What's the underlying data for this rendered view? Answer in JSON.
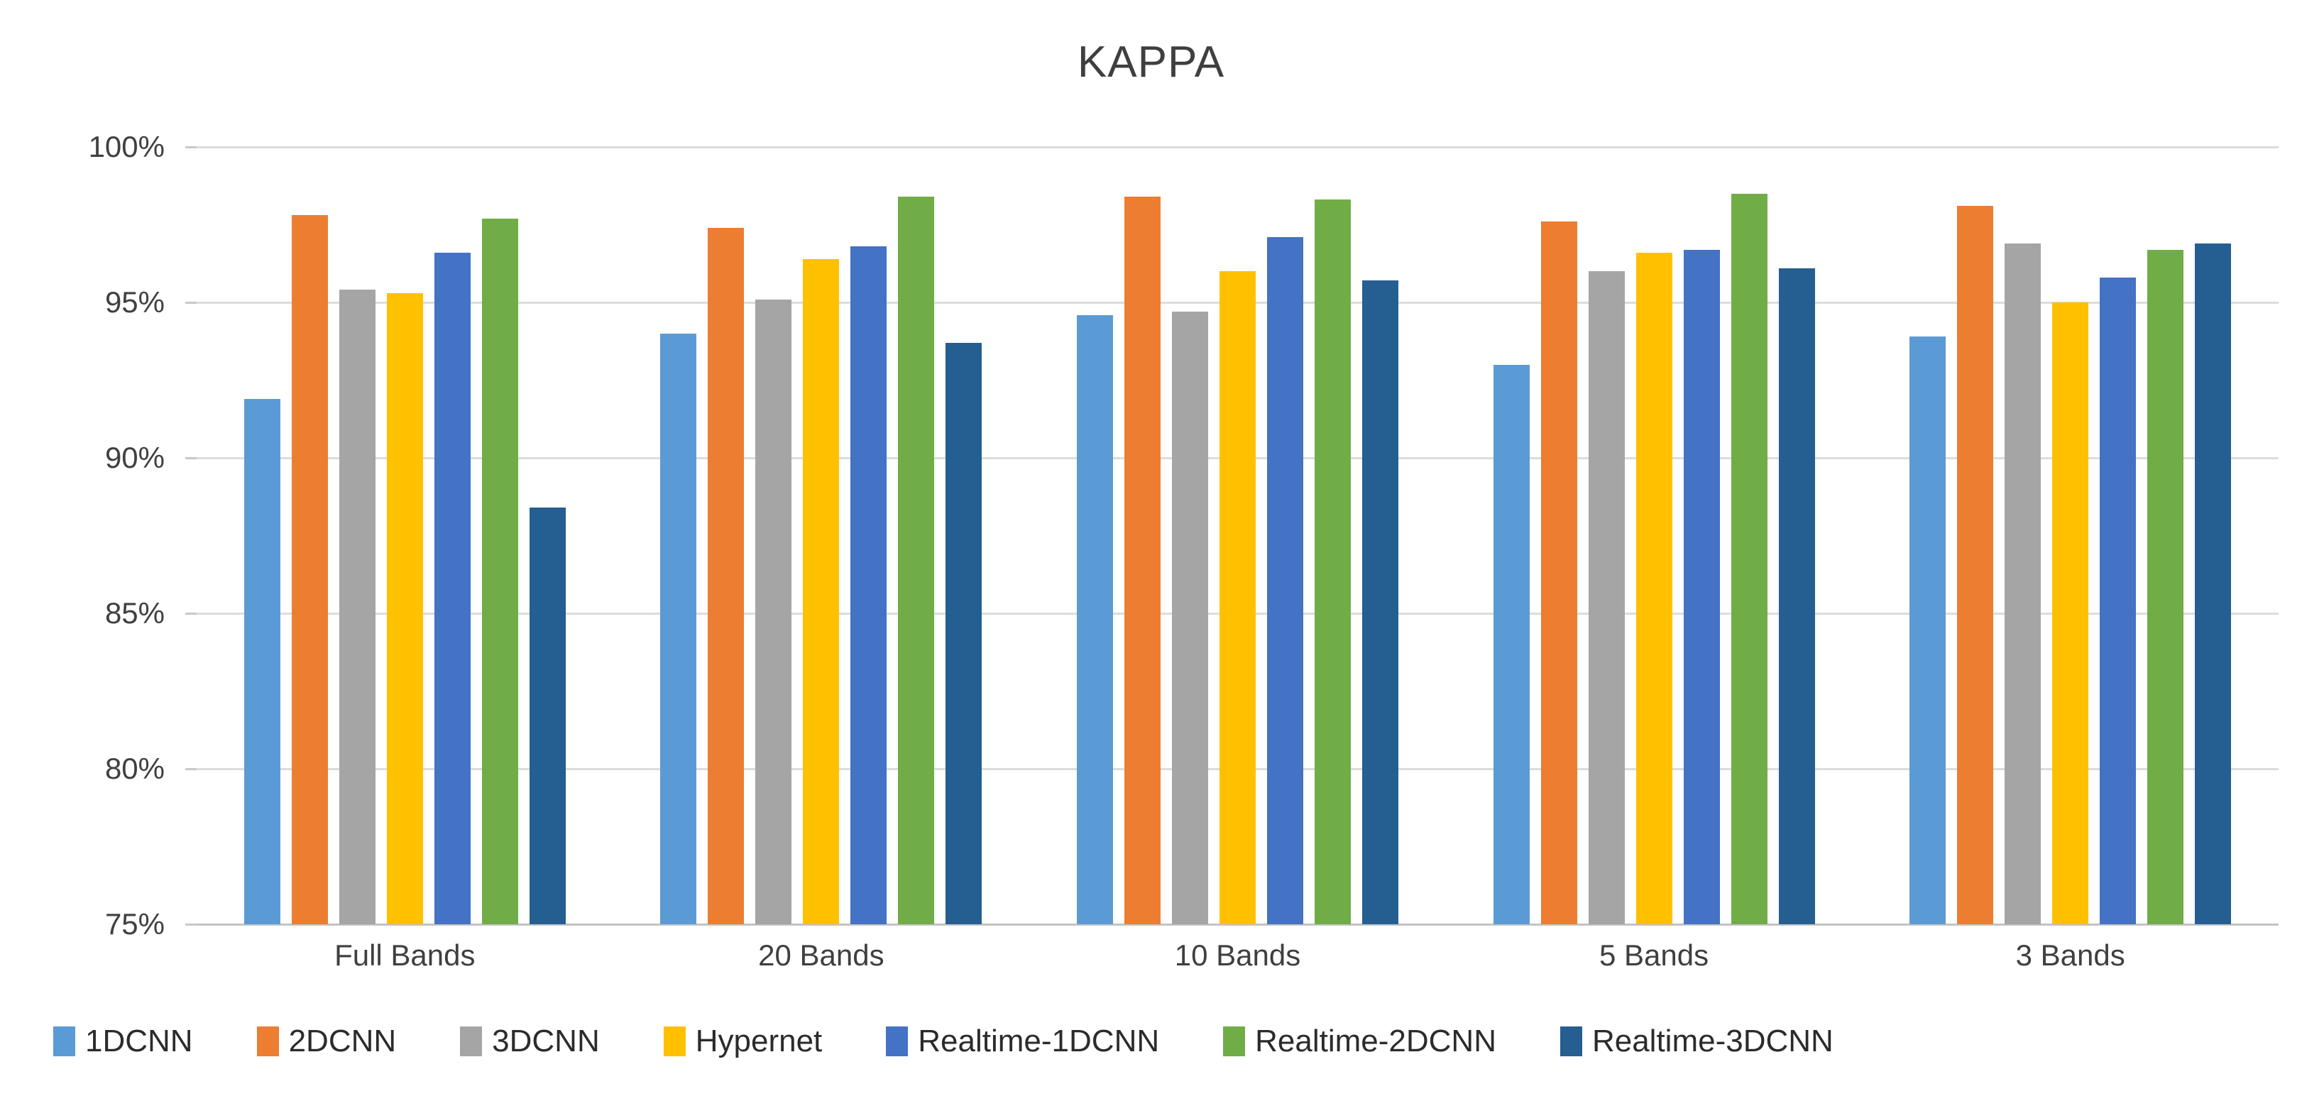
{
  "title": "KAPPA",
  "chart_data": {
    "type": "bar",
    "title": "KAPPA",
    "xlabel": "",
    "ylabel": "",
    "ylim": [
      75,
      100
    ],
    "ytick_step": 5,
    "yticks": [
      "100%",
      "95%",
      "90%",
      "85%",
      "80%",
      "75%"
    ],
    "grid": true,
    "legend_position": "bottom",
    "categories": [
      "Full Bands",
      "20 Bands",
      "10 Bands",
      "5 Bands",
      "3 Bands"
    ],
    "series": [
      {
        "name": "1DCNN",
        "color": "#5B9BD5",
        "values": [
          91.9,
          94.0,
          94.6,
          93.0,
          93.9
        ]
      },
      {
        "name": "2DCNN",
        "color": "#ED7D31",
        "values": [
          97.8,
          97.4,
          98.4,
          97.6,
          98.1
        ]
      },
      {
        "name": "3DCNN",
        "color": "#A5A5A5",
        "values": [
          95.4,
          95.1,
          94.7,
          96.0,
          96.9
        ]
      },
      {
        "name": "Hypernet",
        "color": "#FFC000",
        "values": [
          95.3,
          96.4,
          96.0,
          96.6,
          95.0
        ]
      },
      {
        "name": "Realtime-1DCNN",
        "color": "#4472C4",
        "values": [
          96.6,
          96.8,
          97.1,
          96.7,
          95.8
        ]
      },
      {
        "name": "Realtime-2DCNN",
        "color": "#70AD47",
        "values": [
          97.7,
          98.4,
          98.3,
          98.5,
          96.7
        ]
      },
      {
        "name": "Realtime-3DCNN",
        "color": "#255E91",
        "values": [
          88.4,
          93.7,
          95.7,
          96.1,
          96.9
        ]
      }
    ],
    "axis_colors": {
      "gridline": "#dcdcdc",
      "axis_line": "#c3c3c3",
      "tick_label": "#404040"
    }
  }
}
